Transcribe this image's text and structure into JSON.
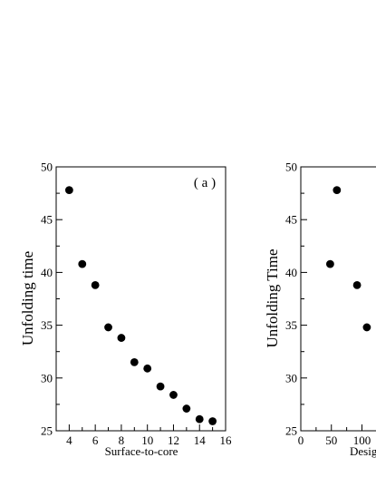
{
  "chart_data": [
    {
      "type": "scatter",
      "panel_label": "( a )",
      "xlabel": "Surface-to-core",
      "ylabel": "Unfolding time",
      "xlim": [
        3,
        16
      ],
      "ylim": [
        25,
        50
      ],
      "xticks": [
        4,
        6,
        8,
        10,
        12,
        14,
        16
      ],
      "yticks": [
        25,
        30,
        35,
        40,
        45,
        50
      ],
      "grid": false,
      "points": [
        {
          "x": 4,
          "y": 47.8
        },
        {
          "x": 5,
          "y": 40.8
        },
        {
          "x": 6,
          "y": 38.8
        },
        {
          "x": 7,
          "y": 34.8
        },
        {
          "x": 8,
          "y": 33.8
        },
        {
          "x": 9,
          "y": 31.5
        },
        {
          "x": 10,
          "y": 30.9
        },
        {
          "x": 11,
          "y": 29.2
        },
        {
          "x": 12,
          "y": 28.4
        },
        {
          "x": 13,
          "y": 27.1
        },
        {
          "x": 14,
          "y": 26.1
        },
        {
          "x": 15,
          "y": 25.9
        }
      ]
    },
    {
      "type": "scatter",
      "xlabel": "Desig",
      "ylabel": "Unfolding Time",
      "xlim": [
        0,
        150
      ],
      "ylim": [
        25,
        50
      ],
      "xticks": [
        0,
        50,
        100
      ],
      "yticks": [
        25,
        30,
        35,
        40,
        45,
        50
      ],
      "grid": false,
      "points": [
        {
          "x": 48,
          "y": 40.8
        },
        {
          "x": 59,
          "y": 47.8
        },
        {
          "x": 92,
          "y": 38.8
        },
        {
          "x": 108,
          "y": 34.8
        }
      ]
    }
  ]
}
